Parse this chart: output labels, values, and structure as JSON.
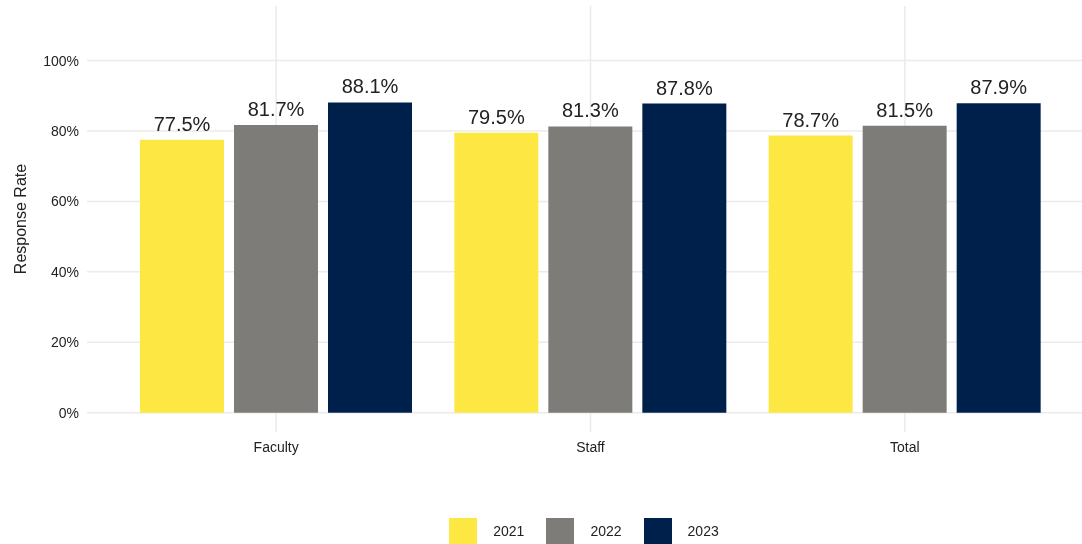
{
  "chart_data": {
    "type": "bar",
    "ylabel": "Response Rate",
    "categories": [
      "Faculty",
      "Staff",
      "Total"
    ],
    "series": [
      {
        "name": "2021",
        "color": "#fde843",
        "values": [
          77.5,
          79.5,
          78.7
        ],
        "value_labels": [
          "77.5%",
          "79.5%",
          "78.7%"
        ]
      },
      {
        "name": "2022",
        "color": "#7d7c78",
        "values": [
          81.7,
          81.3,
          81.5
        ],
        "value_labels": [
          "81.7%",
          "81.3%",
          "81.5%"
        ]
      },
      {
        "name": "2023",
        "color": "#00204c",
        "values": [
          88.1,
          87.8,
          87.9
        ],
        "value_labels": [
          "88.1%",
          "87.8%",
          "87.9%"
        ]
      }
    ],
    "ylim": [
      -5.5,
      115.5
    ],
    "yticks": [
      {
        "value": 0,
        "label": "0%"
      },
      {
        "value": 20,
        "label": "20%"
      },
      {
        "value": 40,
        "label": "40%"
      },
      {
        "value": 60,
        "label": "60%"
      },
      {
        "value": 80,
        "label": "80%"
      },
      {
        "value": 100,
        "label": "100%"
      }
    ],
    "grid": true,
    "legend": "bottom"
  }
}
